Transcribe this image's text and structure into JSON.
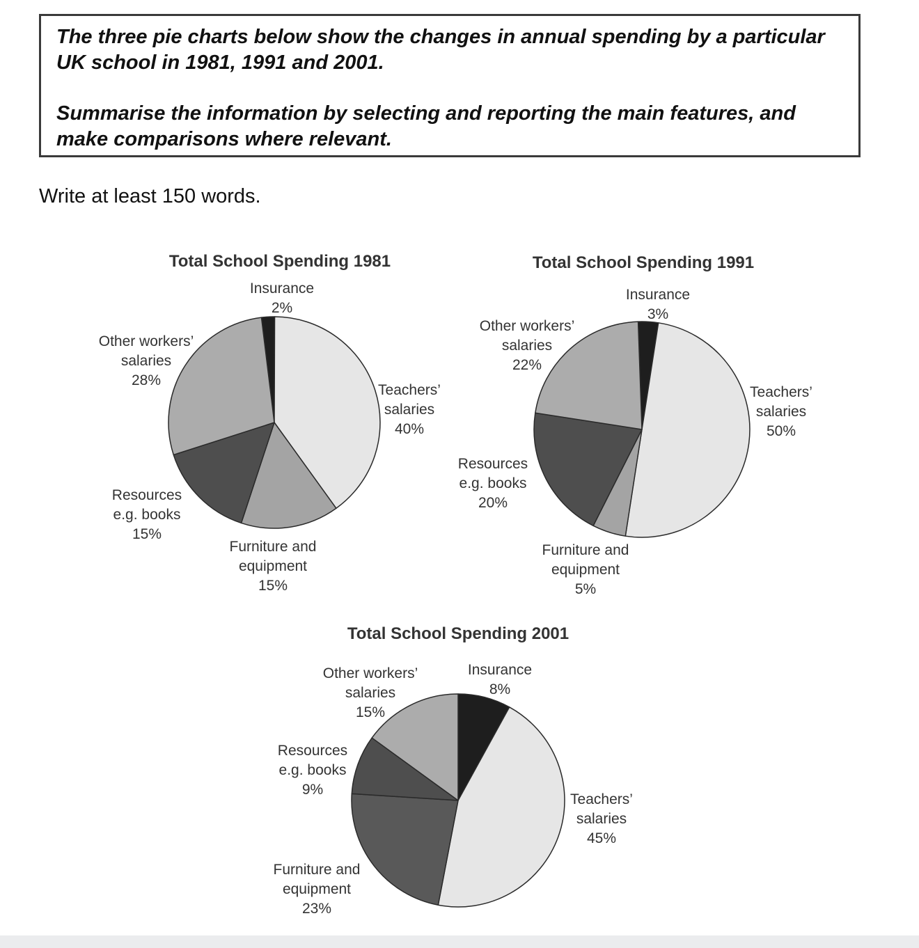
{
  "task": {
    "line1": "The three pie charts below show the changes in annual spending by a particular UK school in 1981, 1991 and 2001.",
    "line2": "Summarise the information by selecting and reporting the main features, and make comparisons where relevant."
  },
  "instruction": "Write at least 150 words.",
  "chart_data": [
    {
      "type": "pie",
      "title": "Total School Spending 1981",
      "slices": [
        {
          "name": "Insurance",
          "lines": [
            "Insurance",
            "2%"
          ],
          "value": 2,
          "color": "#1e1e1e"
        },
        {
          "name": "Teachers' salaries",
          "lines": [
            "Teachers’",
            "salaries",
            "40%"
          ],
          "value": 40,
          "color": "#e6e6e6"
        },
        {
          "name": "Furniture and equipment",
          "lines": [
            "Furniture and",
            "equipment",
            "15%"
          ],
          "value": 15,
          "color": "#a4a4a4"
        },
        {
          "name": "Resources e.g. books",
          "lines": [
            "Resources",
            "e.g. books",
            "15%"
          ],
          "value": 15,
          "color": "#4e4e4e"
        },
        {
          "name": "Other workers' salaries",
          "lines": [
            "Other workers’",
            "salaries",
            "28%"
          ],
          "value": 28,
          "color": "#acacac"
        }
      ]
    },
    {
      "type": "pie",
      "title": "Total School Spending 1991",
      "slices": [
        {
          "name": "Insurance",
          "lines": [
            "Insurance",
            "3%"
          ],
          "value": 3,
          "color": "#1e1e1e"
        },
        {
          "name": "Teachers' salaries",
          "lines": [
            "Teachers’",
            "salaries",
            "50%"
          ],
          "value": 50,
          "color": "#e6e6e6"
        },
        {
          "name": "Furniture and equipment",
          "lines": [
            "Furniture and",
            "equipment",
            "5%"
          ],
          "value": 5,
          "color": "#a4a4a4"
        },
        {
          "name": "Resources e.g. books",
          "lines": [
            "Resources",
            "e.g. books",
            "20%"
          ],
          "value": 20,
          "color": "#4e4e4e"
        },
        {
          "name": "Other workers' salaries",
          "lines": [
            "Other workers’",
            "salaries",
            "22%"
          ],
          "value": 22,
          "color": "#acacac"
        }
      ]
    },
    {
      "type": "pie",
      "title": "Total School Spending 2001",
      "slices": [
        {
          "name": "Insurance",
          "lines": [
            "Insurance",
            "8%"
          ],
          "value": 8,
          "color": "#1e1e1e"
        },
        {
          "name": "Teachers' salaries",
          "lines": [
            "Teachers’",
            "salaries",
            "45%"
          ],
          "value": 45,
          "color": "#e6e6e6"
        },
        {
          "name": "Furniture and equipment",
          "lines": [
            "Furniture and",
            "equipment",
            "23%"
          ],
          "value": 23,
          "color": "#595959"
        },
        {
          "name": "Resources e.g. books",
          "lines": [
            "Resources",
            "e.g. books",
            "9%"
          ],
          "value": 9,
          "color": "#4e4e4e"
        },
        {
          "name": "Other workers' salaries",
          "lines": [
            "Other workers’",
            "salaries",
            "15%"
          ],
          "value": 15,
          "color": "#acacac"
        }
      ]
    }
  ]
}
